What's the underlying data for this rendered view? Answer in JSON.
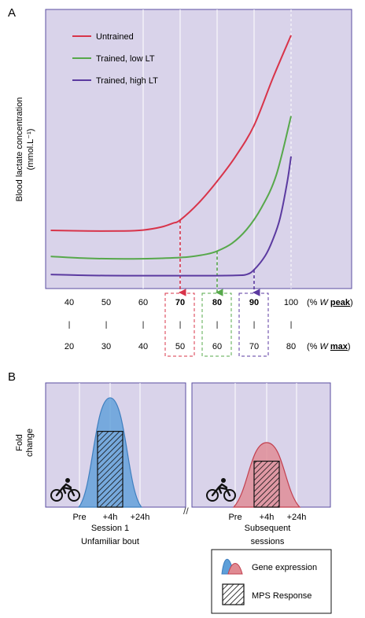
{
  "chart_data": [
    {
      "panel": "A",
      "type": "line",
      "ylabel": "Blood lactate concentration",
      "yunit": "(mmol.L⁻¹)",
      "x_peak": [
        40,
        50,
        60,
        70,
        80,
        90,
        100
      ],
      "x_peak_unit_prefix": "(% ",
      "x_peak_unit_w": "W",
      "x_peak_unit_bold": "peak",
      "x_max": [
        20,
        30,
        40,
        50,
        60,
        70,
        80
      ],
      "x_max_unit_prefix": "(% ",
      "x_max_unit_w": "W",
      "x_max_unit_bold": "max",
      "tick_mark": "|",
      "legend_position": "top-left",
      "series": [
        {
          "name": "Untrained",
          "color": "#d8344a",
          "threshold_x": 70,
          "x": [
            35,
            45,
            55,
            60,
            65,
            68,
            70,
            75,
            80,
            85,
            90,
            95,
            100
          ],
          "y": [
            0.152,
            0.15,
            0.15,
            0.153,
            0.163,
            0.175,
            0.185,
            0.24,
            0.31,
            0.39,
            0.49,
            0.64,
            0.78
          ]
        },
        {
          "name": "Trained, low LT",
          "color": "#57a84b",
          "threshold_x": 80,
          "x": [
            35,
            45,
            55,
            65,
            72,
            77,
            80,
            84,
            88,
            92,
            96,
            100
          ],
          "y": [
            0.068,
            0.062,
            0.06,
            0.062,
            0.066,
            0.075,
            0.085,
            0.11,
            0.155,
            0.225,
            0.33,
            0.52
          ]
        },
        {
          "name": "Trained, high LT",
          "color": "#5b3aa0",
          "threshold_x": 90,
          "x": [
            35,
            45,
            55,
            65,
            75,
            85,
            88,
            90,
            93,
            95,
            97,
            99,
            100
          ],
          "y": [
            0.01,
            0.007,
            0.006,
            0.006,
            0.006,
            0.007,
            0.01,
            0.025,
            0.07,
            0.12,
            0.19,
            0.31,
            0.39
          ]
        }
      ]
    },
    {
      "panel": "B",
      "type": "area",
      "ylabel": "Fold change",
      "legend_position": "bottom-right",
      "sessions": [
        {
          "name": "Session 1 Unfamiliar bout",
          "label_line1": "Session 1",
          "label_line2": "Unfamiliar bout",
          "times": [
            "Pre",
            "+4h",
            "+24h"
          ],
          "gene_expression_peak": 0.88,
          "mps_response": 0.61,
          "fill_color": "#5d9fd9"
        },
        {
          "name": "Subsequent sessions",
          "label_line1": "Subsequent",
          "label_line2": "sessions",
          "times": [
            "Pre",
            "+4h",
            "+24h"
          ],
          "gene_expression_peak": 0.52,
          "mps_response": 0.37,
          "fill_color": "#e08a92"
        }
      ],
      "legend": [
        "Gene expression",
        "MPS Response"
      ]
    }
  ],
  "panel_labels": [
    "A",
    "B"
  ],
  "axis_break": "//",
  "colors": {
    "panel_background": "#d9d3ea",
    "frame": "#5a4ea0",
    "gridline": "#ffffff"
  }
}
